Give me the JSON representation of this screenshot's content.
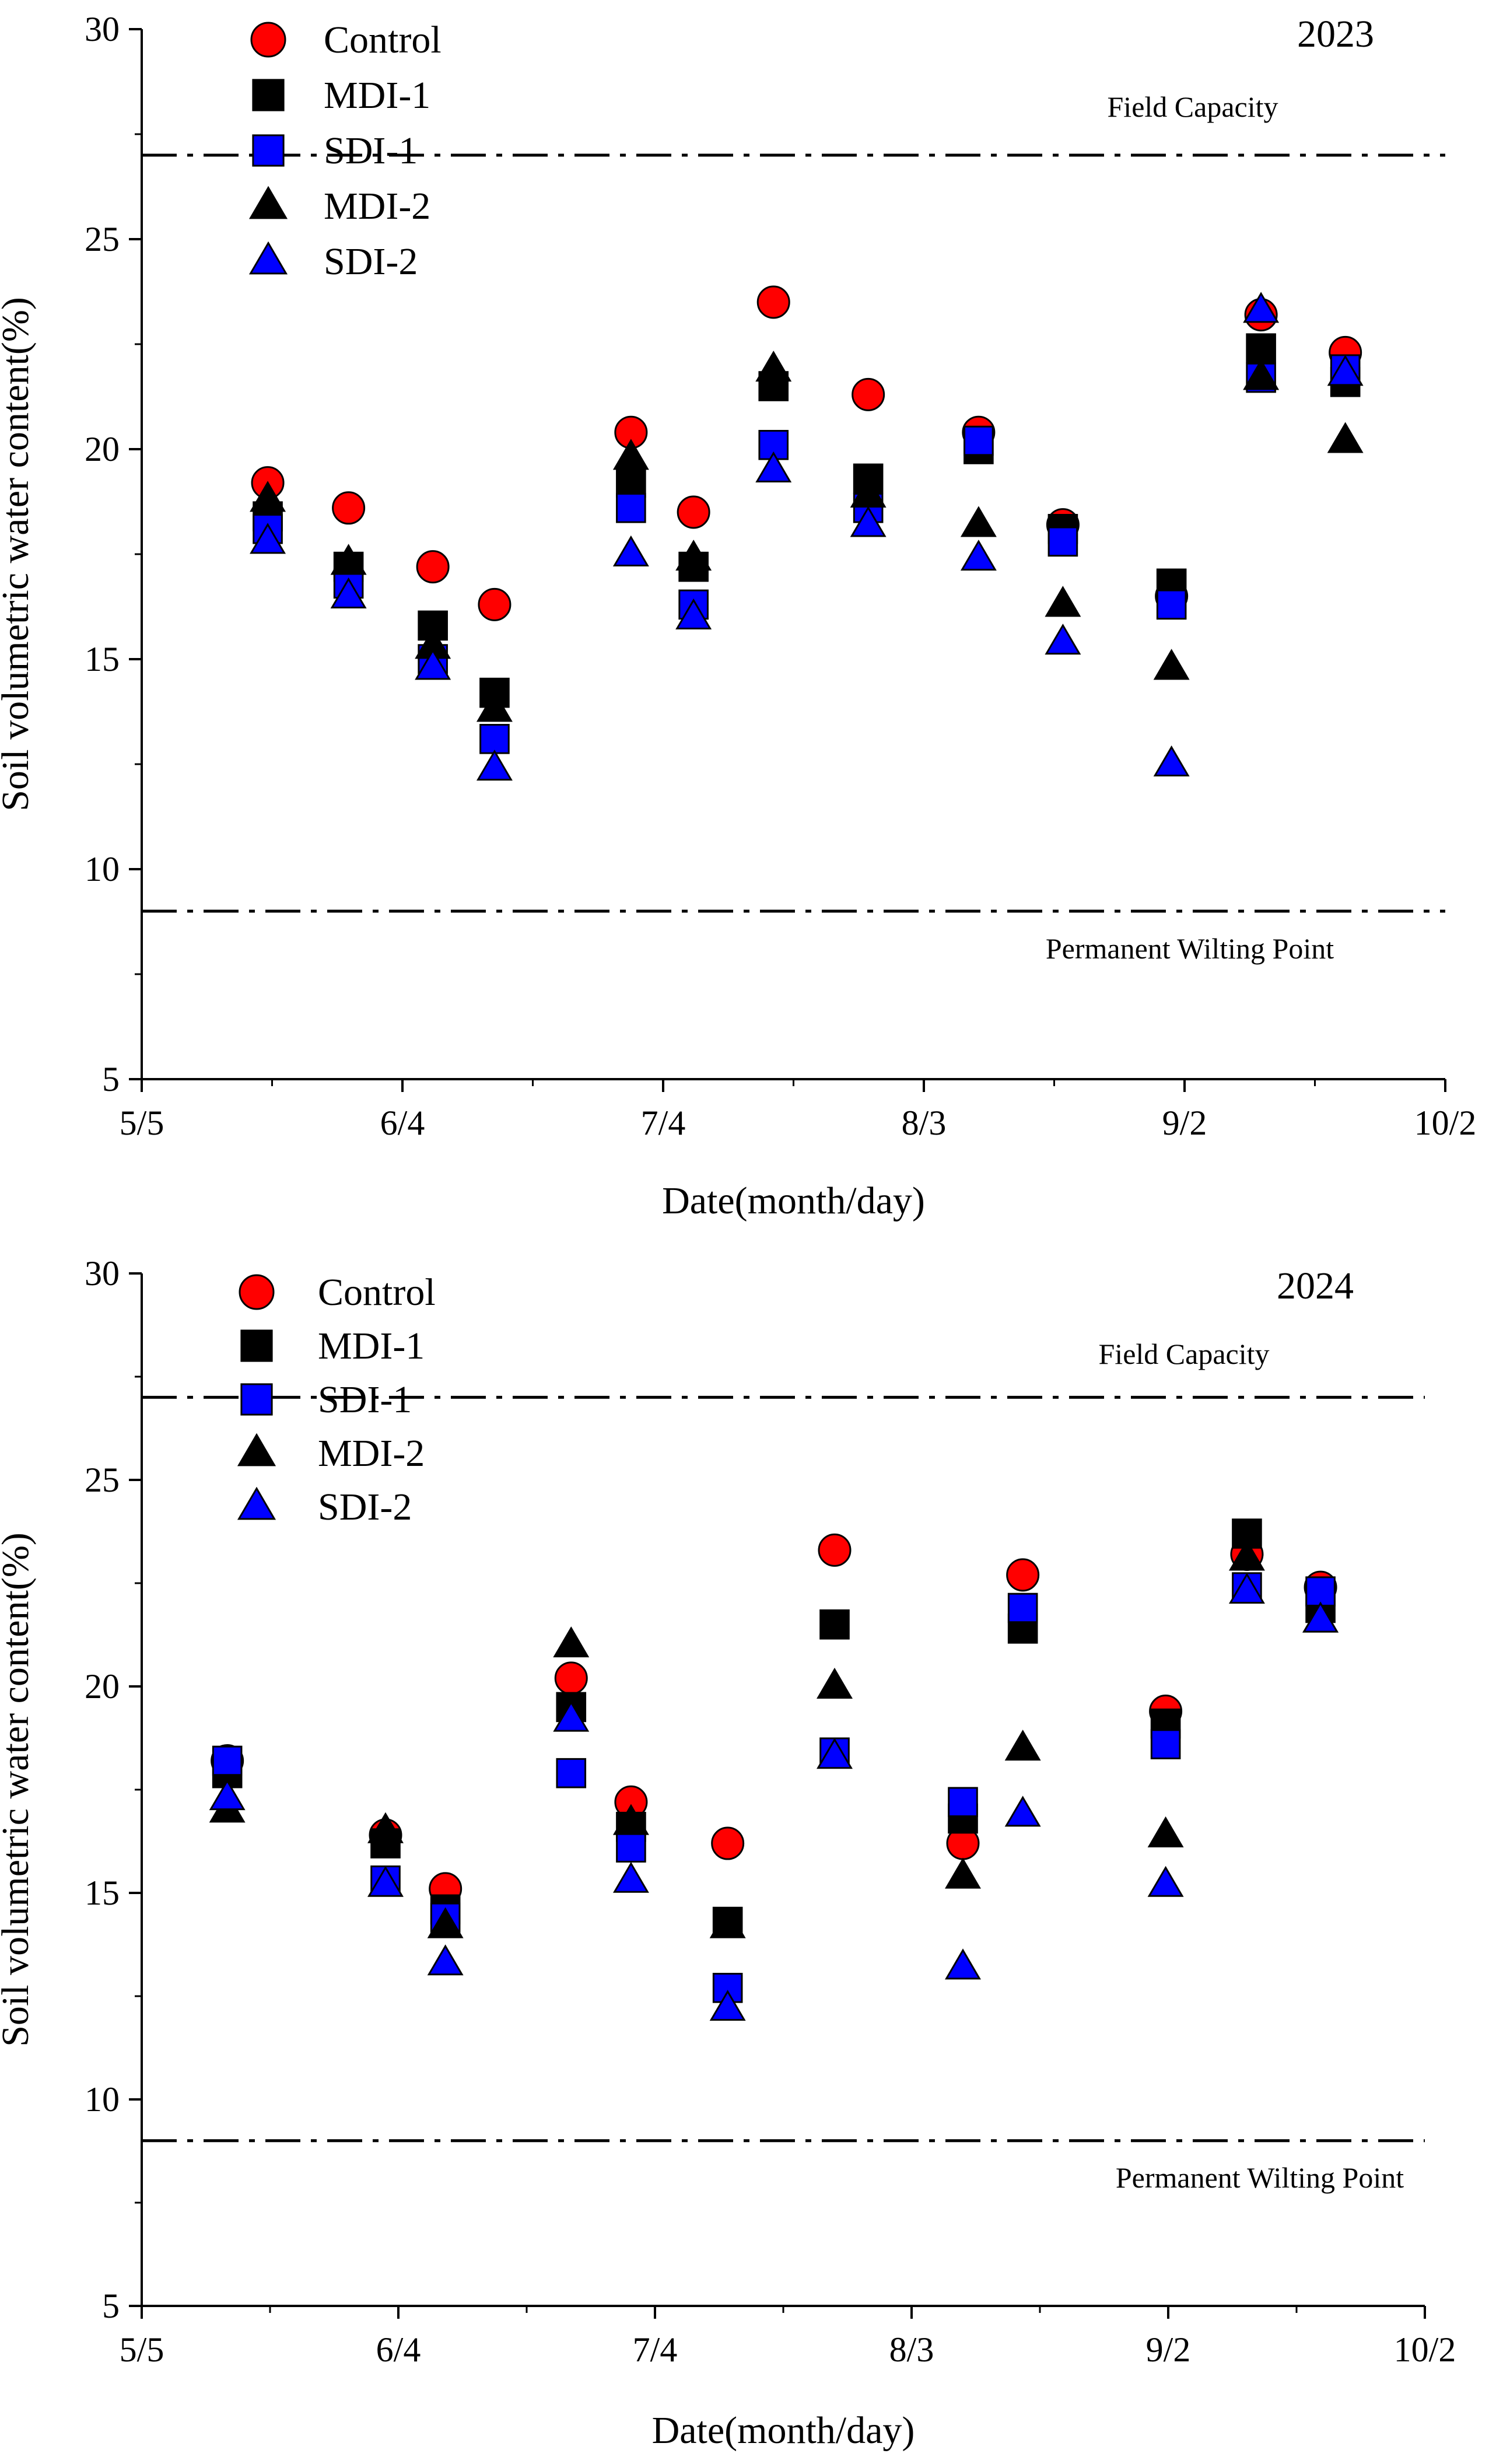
{
  "chart_data": [
    {
      "type": "scatter",
      "year_label": "2023",
      "xlabel": "Date(month/day)",
      "ylabel": "Soil volumetric water content(%)",
      "ylim": [
        5,
        30
      ],
      "yticks": [
        "5",
        "10",
        "15",
        "20",
        "25",
        "30"
      ],
      "xlim_days": [
        0,
        150
      ],
      "xticks": [
        {
          "day": 0,
          "label": "5/5"
        },
        {
          "day": 30,
          "label": "6/4"
        },
        {
          "day": 60,
          "label": "7/4"
        },
        {
          "day": 90,
          "label": "8/3"
        },
        {
          "day": 120,
          "label": "9/2"
        },
        {
          "day": 150,
          "label": "10/2"
        }
      ],
      "reference_lines": [
        {
          "name": "Field Capacity",
          "value": 27
        },
        {
          "name": "Permanent Wilting Point",
          "value": 9
        }
      ],
      "series": [
        {
          "name": "Control",
          "marker": "circle",
          "color": "#ff0000",
          "points": [
            [
              14.5,
              19.2
            ],
            [
              23.8,
              18.6
            ],
            [
              33.5,
              17.2
            ],
            [
              40.6,
              16.3
            ],
            [
              56.3,
              20.4
            ],
            [
              63.5,
              18.5
            ],
            [
              72.7,
              23.5
            ],
            [
              83.6,
              21.3
            ],
            [
              96.3,
              20.4
            ],
            [
              106,
              18.2
            ],
            [
              118.5,
              16.5
            ],
            [
              128.8,
              23.2
            ],
            [
              138.5,
              22.3
            ]
          ]
        },
        {
          "name": "MDI-1",
          "marker": "square",
          "color": "#000000",
          "points": [
            [
              14.5,
              18.4
            ],
            [
              23.8,
              17.2
            ],
            [
              33.5,
              15.8
            ],
            [
              40.6,
              14.2
            ],
            [
              56.3,
              19.2
            ],
            [
              63.5,
              17.2
            ],
            [
              72.7,
              21.5
            ],
            [
              83.6,
              19.3
            ],
            [
              96.3,
              20.0
            ],
            [
              106,
              18.1
            ],
            [
              118.5,
              16.8
            ],
            [
              128.8,
              22.4
            ],
            [
              138.5,
              21.6
            ]
          ]
        },
        {
          "name": "SDI-1",
          "marker": "square",
          "color": "#0000ff",
          "points": [
            [
              14.5,
              18.1
            ],
            [
              23.8,
              16.8
            ],
            [
              33.5,
              15.0
            ],
            [
              40.6,
              13.1
            ],
            [
              56.3,
              18.6
            ],
            [
              63.5,
              16.3
            ],
            [
              72.7,
              20.1
            ],
            [
              83.6,
              18.6
            ],
            [
              96.3,
              20.2
            ],
            [
              106,
              17.8
            ],
            [
              118.5,
              16.3
            ],
            [
              128.8,
              21.7
            ],
            [
              138.5,
              21.9
            ]
          ]
        },
        {
          "name": "MDI-2",
          "marker": "triangle",
          "color": "#000000",
          "points": [
            [
              14.5,
              18.8
            ],
            [
              23.8,
              17.3
            ],
            [
              33.5,
              15.3
            ],
            [
              40.6,
              13.8
            ],
            [
              56.3,
              19.8
            ],
            [
              63.5,
              17.4
            ],
            [
              72.7,
              21.9
            ],
            [
              83.6,
              18.9
            ],
            [
              96.3,
              18.2
            ],
            [
              106,
              16.3
            ],
            [
              118.5,
              14.8
            ],
            [
              128.8,
              21.7
            ],
            [
              138.5,
              20.2
            ]
          ]
        },
        {
          "name": "SDI-2",
          "marker": "triangle",
          "color": "#0000ff",
          "points": [
            [
              14.5,
              17.8
            ],
            [
              23.8,
              16.5
            ],
            [
              33.5,
              14.8
            ],
            [
              40.6,
              12.4
            ],
            [
              56.3,
              17.5
            ],
            [
              63.5,
              16.0
            ],
            [
              72.7,
              19.5
            ],
            [
              83.6,
              18.2
            ],
            [
              96.3,
              17.4
            ],
            [
              106,
              15.4
            ],
            [
              118.5,
              12.5
            ],
            [
              128.8,
              23.3
            ],
            [
              138.5,
              21.8
            ]
          ]
        }
      ]
    },
    {
      "type": "scatter",
      "year_label": "2024",
      "xlabel": "Date(month/day)",
      "ylabel": "Soil volumetric water content(%)",
      "ylim": [
        5,
        30
      ],
      "yticks": [
        "5",
        "10",
        "15",
        "20",
        "25",
        "30"
      ],
      "xlim_days": [
        0,
        150
      ],
      "xticks": [
        {
          "day": 0,
          "label": "5/5"
        },
        {
          "day": 30,
          "label": "6/4"
        },
        {
          "day": 60,
          "label": "7/4"
        },
        {
          "day": 90,
          "label": "8/3"
        },
        {
          "day": 120,
          "label": "9/2"
        },
        {
          "day": 150,
          "label": "10/2"
        }
      ],
      "reference_lines": [
        {
          "name": "Field Capacity",
          "value": 27
        },
        {
          "name": "Permanent Wilting Point",
          "value": 9
        }
      ],
      "series": [
        {
          "name": "Control",
          "marker": "circle",
          "color": "#ff0000",
          "points": [
            [
              10,
              18.2
            ],
            [
              28.5,
              16.4
            ],
            [
              35.5,
              15.1
            ],
            [
              50.2,
              20.2
            ],
            [
              57.2,
              17.2
            ],
            [
              68.5,
              16.2
            ],
            [
              81,
              23.3
            ],
            [
              96,
              16.2
            ],
            [
              103,
              22.7
            ],
            [
              119.7,
              19.4
            ],
            [
              129.2,
              23.2
            ],
            [
              137.8,
              22.4
            ]
          ]
        },
        {
          "name": "MDI-1",
          "marker": "square",
          "color": "#000000",
          "points": [
            [
              10,
              17.9
            ],
            [
              28.5,
              16.2
            ],
            [
              35.5,
              14.6
            ],
            [
              50.2,
              19.5
            ],
            [
              57.2,
              16.6
            ],
            [
              68.5,
              14.3
            ],
            [
              81,
              21.5
            ],
            [
              96,
              16.8
            ],
            [
              103,
              21.4
            ],
            [
              119.7,
              19.1
            ],
            [
              129.2,
              23.7
            ],
            [
              137.8,
              21.9
            ]
          ]
        },
        {
          "name": "SDI-1",
          "marker": "square",
          "color": "#0000ff",
          "points": [
            [
              10,
              18.2
            ],
            [
              28.5,
              15.3
            ],
            [
              35.5,
              14.4
            ],
            [
              50.2,
              17.9
            ],
            [
              57.2,
              16.1
            ],
            [
              68.5,
              12.7
            ],
            [
              81,
              18.4
            ],
            [
              96,
              17.2
            ],
            [
              103,
              21.9
            ],
            [
              119.7,
              18.6
            ],
            [
              129.2,
              22.4
            ],
            [
              137.8,
              22.3
            ]
          ]
        },
        {
          "name": "MDI-2",
          "marker": "triangle",
          "color": "#000000",
          "points": [
            [
              10,
              17.0
            ],
            [
              28.5,
              16.5
            ],
            [
              35.5,
              14.2
            ],
            [
              50.2,
              21.0
            ],
            [
              57.2,
              16.7
            ],
            [
              68.5,
              14.2
            ],
            [
              81,
              20.0
            ],
            [
              96,
              15.4
            ],
            [
              103,
              18.5
            ],
            [
              119.7,
              16.4
            ],
            [
              129.2,
              23.1
            ],
            [
              137.8,
              21.6
            ]
          ]
        },
        {
          "name": "SDI-2",
          "marker": "triangle",
          "color": "#0000ff",
          "points": [
            [
              10,
              17.3
            ],
            [
              28.5,
              15.2
            ],
            [
              35.5,
              13.3
            ],
            [
              50.2,
              19.2
            ],
            [
              57.2,
              15.3
            ],
            [
              68.5,
              12.2
            ],
            [
              81,
              18.3
            ],
            [
              96,
              13.2
            ],
            [
              103,
              16.9
            ],
            [
              119.7,
              15.2
            ],
            [
              129.2,
              22.3
            ],
            [
              137.8,
              21.6
            ]
          ]
        }
      ]
    }
  ]
}
